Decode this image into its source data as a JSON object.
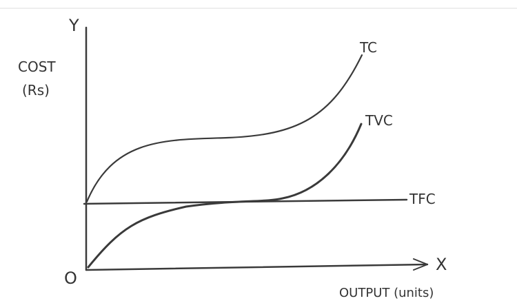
{
  "labels": {
    "y_axis": "Y",
    "x_axis": "X",
    "origin": "O",
    "cost": "COST",
    "cost_unit": "(Rs)",
    "output": "OUTPUT (units)",
    "tc": "TC",
    "tvc": "TVC",
    "tfc": "TFC"
  },
  "colors": {
    "ink": "#3a3a3a",
    "background": "#ffffff"
  }
}
